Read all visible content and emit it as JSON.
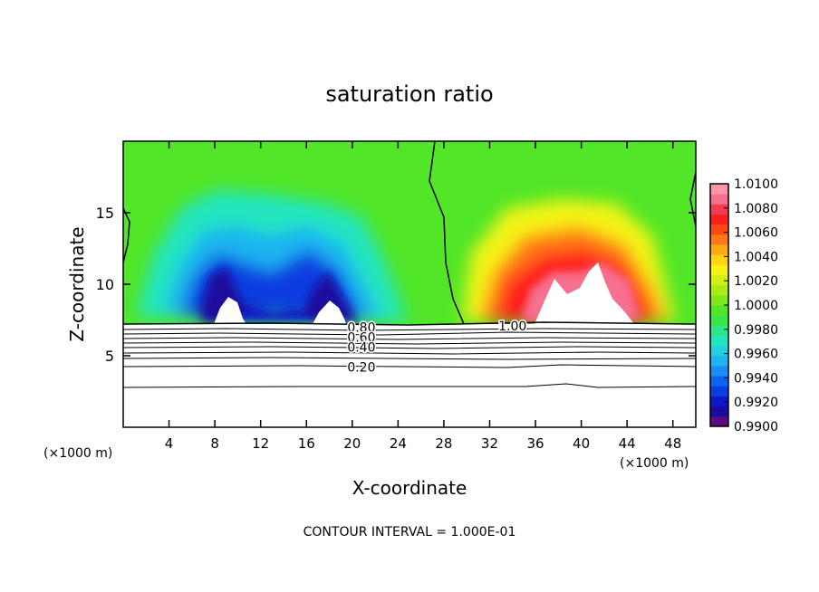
{
  "chart_data": {
    "type": "heatmap",
    "title": "saturation ratio",
    "xlabel": "X-coordinate",
    "ylabel": "Z-coordinate",
    "x_unit_left": "(×1000 m)",
    "x_unit_right": "(×1000 m)",
    "footer": "CONTOUR INTERVAL = 1.000E-01",
    "xlim": [
      0,
      50
    ],
    "ylim": [
      0,
      20
    ],
    "x_ticks": [
      4,
      8,
      12,
      16,
      20,
      24,
      28,
      32,
      36,
      40,
      44,
      48
    ],
    "y_ticks": [
      5,
      10,
      15
    ],
    "colorbar": {
      "min": 0.99,
      "max": 1.01,
      "tick_labels": [
        "0.9900",
        "0.9920",
        "0.9940",
        "0.9960",
        "0.9980",
        "1.0000",
        "1.0020",
        "1.0040",
        "1.0060",
        "1.0080",
        "1.0100"
      ],
      "colors": [
        "#5a0a82",
        "#1a0a9e",
        "#0a1ac8",
        "#0a3ee0",
        "#0a64f0",
        "#1a8cf8",
        "#1eb4f0",
        "#20d2e0",
        "#22e6c0",
        "#2ae88a",
        "#38e64a",
        "#52e628",
        "#7ee81c",
        "#a8ec18",
        "#d2f014",
        "#f4f414",
        "#ffd214",
        "#ffaa14",
        "#ff7a14",
        "#ff4a14",
        "#ff1e1e",
        "#f03c50",
        "#f87090",
        "#ff96a8"
      ]
    },
    "contour_labels": [
      {
        "text": "0.80",
        "x": 20.8,
        "z": 7.0
      },
      {
        "text": "0.60",
        "x": 20.8,
        "z": 6.3
      },
      {
        "text": "0.40",
        "x": 20.8,
        "z": 5.6
      },
      {
        "text": "0.20",
        "x": 20.8,
        "z": 4.2
      },
      {
        "text": "1.00",
        "x": 34.0,
        "z": 7.1
      }
    ],
    "boundary_z": 7.2
  }
}
